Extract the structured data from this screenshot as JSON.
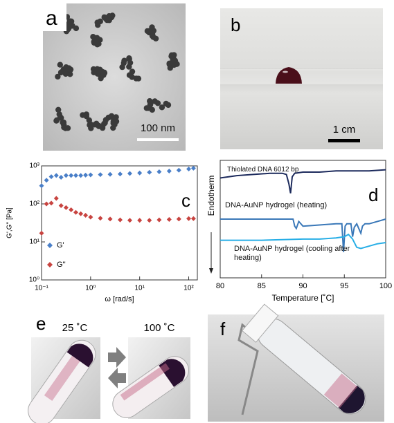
{
  "panels": {
    "a": {
      "label": "a",
      "scale_bar": "100 nm"
    },
    "b": {
      "label": "b",
      "scale_bar": "1 cm"
    },
    "c": {
      "label": "c"
    },
    "d": {
      "label": "d"
    },
    "e": {
      "label": "e",
      "left_temp": "25 ˚C",
      "right_temp": "100 ˚C"
    },
    "f": {
      "label": "f"
    }
  },
  "chart_data": [
    {
      "type": "scatter",
      "xlabel": "ω [rad/s]",
      "ylabel": "G',G'' [Pa]",
      "xscale": "log",
      "yscale": "log",
      "xlim": [
        0.1,
        150
      ],
      "ylim": [
        1,
        1000
      ],
      "xticks": [
        {
          "value": 0.1,
          "label": "10⁻¹"
        },
        {
          "value": 1,
          "label": "10⁰"
        },
        {
          "value": 10,
          "label": "10¹"
        },
        {
          "value": 100,
          "label": "10²"
        }
      ],
      "yticks": [
        {
          "value": 1,
          "label": "10⁰"
        },
        {
          "value": 10,
          "label": "10¹"
        },
        {
          "value": 100,
          "label": "10²"
        },
        {
          "value": 1000,
          "label": "10³"
        }
      ],
      "x": [
        0.1,
        0.126,
        0.158,
        0.2,
        0.25,
        0.316,
        0.4,
        0.5,
        0.63,
        0.79,
        1,
        1.58,
        2.5,
        4,
        6.3,
        10,
        15.8,
        25,
        40,
        63,
        100,
        125
      ],
      "series": [
        {
          "name": "G'",
          "color": "#4a7fc8",
          "values": [
            300,
            420,
            520,
            560,
            500,
            560,
            560,
            560,
            560,
            570,
            580,
            590,
            600,
            610,
            630,
            650,
            680,
            700,
            730,
            770,
            830,
            870
          ]
        },
        {
          "name": "G''",
          "color": "#c84440",
          "values": [
            17,
            100,
            105,
            140,
            90,
            80,
            70,
            60,
            55,
            50,
            45,
            42,
            40,
            38,
            37,
            37,
            37,
            38,
            39,
            40,
            41,
            41
          ]
        }
      ],
      "legend": "lower left"
    },
    {
      "type": "line",
      "xlabel": "Temperature [˚C]",
      "ylabel": "Endotherm",
      "xlim": [
        80,
        100
      ],
      "ylim": [
        0,
        10
      ],
      "xticks": [
        80,
        85,
        90,
        95,
        100
      ],
      "series": [
        {
          "name": "Thiolated DNA 6012 bp",
          "color": "#1c2a5c",
          "x": [
            80,
            82,
            84,
            86,
            87.5,
            88,
            88.3,
            88.5,
            88.7,
            89,
            90,
            92,
            94,
            96,
            98,
            100
          ],
          "values": [
            8.5,
            8.7,
            8.8,
            8.9,
            8.9,
            8.8,
            8.0,
            7.2,
            8.6,
            8.9,
            9.0,
            9.0,
            9.1,
            9.1,
            9.1,
            9.2
          ]
        },
        {
          "name": "DNA-AuNP hydrogel (heating)",
          "color": "#3a78b8",
          "x": [
            80,
            84,
            88,
            88.8,
            89,
            89.2,
            89.5,
            90,
            92,
            94,
            94.7,
            94.9,
            95.1,
            95.3,
            95.8,
            96,
            96.2,
            96.5,
            97,
            97.2,
            97.5,
            98,
            100
          ],
          "values": [
            5.0,
            5.0,
            5.0,
            5.0,
            4.4,
            4.2,
            4.8,
            4.4,
            4.5,
            4.6,
            4.6,
            2.2,
            4.4,
            4.6,
            4.6,
            3.5,
            4.3,
            4.6,
            3.8,
            4.4,
            4.6,
            4.6,
            5.0
          ]
        },
        {
          "name": "DNA-AuNP hydrogel (cooling after heating)",
          "color": "#27aee6",
          "x": [
            80,
            85,
            90,
            92,
            94,
            95,
            95.5,
            96,
            96.5,
            97,
            98,
            99,
            100
          ],
          "values": [
            3.2,
            3.2,
            3.3,
            3.3,
            3.4,
            3.5,
            3.7,
            3.3,
            2.6,
            2.5,
            2.7,
            2.9,
            3.0
          ]
        }
      ]
    }
  ]
}
